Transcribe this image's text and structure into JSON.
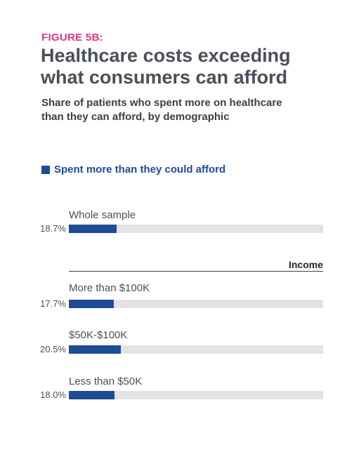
{
  "figure_label": "FIGURE 5B:",
  "title": "Healthcare costs exceeding what consumers can afford",
  "subtitle": "Share of patients who spent more on healthcare than they can afford, by demographic",
  "legend": {
    "label": "Spent more than they could afford",
    "color": "#1d4b94"
  },
  "colors": {
    "bar": "#1d4b94",
    "track": "#e3e3e6",
    "accent": "#e0348a"
  },
  "groups": [
    {
      "title": "",
      "rows": [
        {
          "label": "Whole sample",
          "value_text": "18.7%"
        }
      ]
    },
    {
      "title": "Income",
      "rows": [
        {
          "label": "More than $100K",
          "value_text": "17.7%"
        },
        {
          "label": "$50K-$100K",
          "value_text": "20.5%"
        },
        {
          "label": "Less than $50K",
          "value_text": "18.0%"
        }
      ]
    }
  ],
  "chart_data": {
    "type": "bar",
    "orientation": "horizontal",
    "categories": [
      "Whole sample",
      "More than $100K",
      "$50K-$100K",
      "Less than $50K"
    ],
    "series": [
      {
        "name": "Spent more than they could afford",
        "values": [
          18.7,
          17.7,
          20.5,
          18.0
        ]
      }
    ],
    "xlim": [
      0,
      100
    ],
    "unit": "%",
    "grid": false,
    "legend_position": "top-left"
  }
}
